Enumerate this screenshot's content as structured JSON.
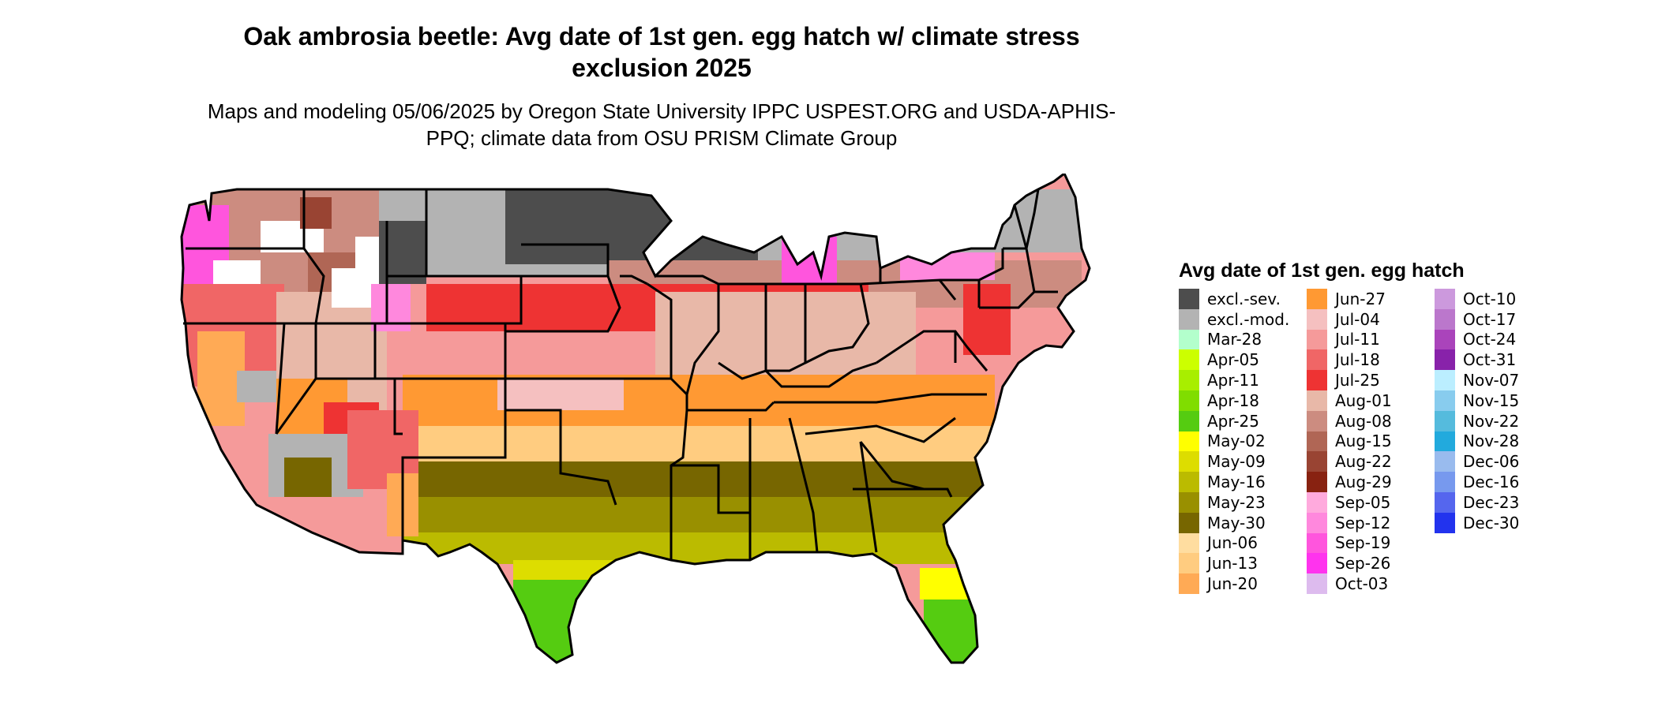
{
  "title": "Oak ambrosia beetle: Avg date of 1st gen. egg hatch w/ climate stress exclusion 2025",
  "subtitle": "Maps and modeling 05/06/2025 by Oregon State University IPPC USPEST.ORG and USDA-APHIS-PPQ; climate data from OSU PRISM Climate Group",
  "legend": {
    "title": "Avg date of 1st gen. egg hatch",
    "columns": [
      [
        {
          "label": "excl.-sev.",
          "color": "#4d4d4d"
        },
        {
          "label": "excl.-mod.",
          "color": "#b3b3b3"
        },
        {
          "label": "Mar-28",
          "color": "#b3ffcc"
        },
        {
          "label": "Apr-05",
          "color": "#ccff00"
        },
        {
          "label": "Apr-11",
          "color": "#a8ee00"
        },
        {
          "label": "Apr-18",
          "color": "#80dd00"
        },
        {
          "label": "Apr-25",
          "color": "#55cc11"
        },
        {
          "label": "May-02",
          "color": "#ffff00"
        },
        {
          "label": "May-09",
          "color": "#dddd00"
        },
        {
          "label": "May-16",
          "color": "#bbbb00"
        },
        {
          "label": "May-23",
          "color": "#999000"
        },
        {
          "label": "May-30",
          "color": "#776600"
        },
        {
          "label": "Jun-06",
          "color": "#ffdda0"
        },
        {
          "label": "Jun-13",
          "color": "#ffcc80"
        },
        {
          "label": "Jun-20",
          "color": "#ffaa55"
        }
      ],
      [
        {
          "label": "Jun-27",
          "color": "#ff9933"
        },
        {
          "label": "Jul-04",
          "color": "#f5c0c0"
        },
        {
          "label": "Jul-11",
          "color": "#f59a9a"
        },
        {
          "label": "Jul-18",
          "color": "#f06666"
        },
        {
          "label": "Jul-25",
          "color": "#ee3333"
        },
        {
          "label": "Aug-01",
          "color": "#e8b8a8"
        },
        {
          "label": "Aug-08",
          "color": "#cc8c80"
        },
        {
          "label": "Aug-15",
          "color": "#b06655"
        },
        {
          "label": "Aug-22",
          "color": "#994433"
        },
        {
          "label": "Aug-29",
          "color": "#882211"
        },
        {
          "label": "Sep-05",
          "color": "#ffaadd"
        },
        {
          "label": "Sep-12",
          "color": "#ff88dd"
        },
        {
          "label": "Sep-19",
          "color": "#ff55dd"
        },
        {
          "label": "Sep-26",
          "color": "#ff33ee"
        },
        {
          "label": "Oct-03",
          "color": "#ddbbee"
        }
      ],
      [
        {
          "label": "Oct-10",
          "color": "#cc99dd"
        },
        {
          "label": "Oct-17",
          "color": "#bb77cc"
        },
        {
          "label": "Oct-24",
          "color": "#aa44bb"
        },
        {
          "label": "Oct-31",
          "color": "#8822aa"
        },
        {
          "label": "Nov-07",
          "color": "#bbeeff"
        },
        {
          "label": "Nov-15",
          "color": "#88ccee"
        },
        {
          "label": "Nov-22",
          "color": "#55bbdd"
        },
        {
          "label": "Nov-28",
          "color": "#22aadd"
        },
        {
          "label": "Dec-06",
          "color": "#99bbee"
        },
        {
          "label": "Dec-16",
          "color": "#7799ee"
        },
        {
          "label": "Dec-23",
          "color": "#5566ee"
        },
        {
          "label": "Dec-30",
          "color": "#2233ee"
        }
      ]
    ]
  }
}
